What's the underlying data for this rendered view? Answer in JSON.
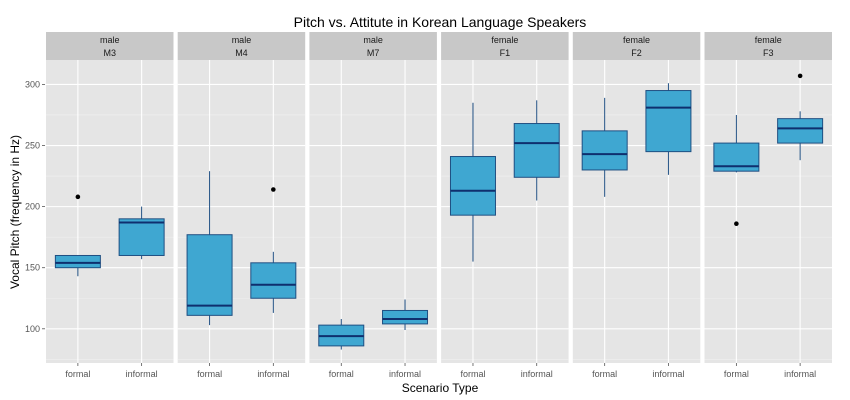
{
  "chart_data": {
    "type": "boxplot",
    "title": "Pitch vs. Attitute in Korean Language Speakers",
    "xlabel": "Scenario Type",
    "ylabel": "Vocal Pitch (frequency in Hz)",
    "ylim": [
      72,
      320
    ],
    "y_ticks": [
      100,
      150,
      200,
      250,
      300
    ],
    "categories": [
      "formal",
      "informal"
    ],
    "grid": true,
    "colors": {
      "panel_bg": "#e5e5e5",
      "strip_bg": "#c8c8c8",
      "grid": "#ffffff",
      "box_fill": "#3fa7d1",
      "box_stroke": "#1f4f82",
      "median": "#0f2f6e",
      "outlier": "#000000"
    },
    "facets": [
      {
        "gender": "male",
        "speaker": "M3",
        "boxes": [
          {
            "category": "formal",
            "min": 143,
            "q1": 150,
            "median": 154,
            "q3": 160,
            "max": 160,
            "outliers": [
              208
            ]
          },
          {
            "category": "informal",
            "min": 157,
            "q1": 160,
            "median": 187,
            "q3": 190,
            "max": 200,
            "outliers": []
          }
        ]
      },
      {
        "gender": "male",
        "speaker": "M4",
        "boxes": [
          {
            "category": "formal",
            "min": 103,
            "q1": 111,
            "median": 119,
            "q3": 177,
            "max": 229,
            "outliers": []
          },
          {
            "category": "informal",
            "min": 113,
            "q1": 125,
            "median": 136,
            "q3": 154,
            "max": 163,
            "outliers": [
              214
            ]
          }
        ]
      },
      {
        "gender": "male",
        "speaker": "M7",
        "boxes": [
          {
            "category": "formal",
            "min": 83,
            "q1": 86,
            "median": 94,
            "q3": 103,
            "max": 108,
            "outliers": []
          },
          {
            "category": "informal",
            "min": 99,
            "q1": 104,
            "median": 108,
            "q3": 115,
            "max": 124,
            "outliers": []
          }
        ]
      },
      {
        "gender": "female",
        "speaker": "F1",
        "boxes": [
          {
            "category": "formal",
            "min": 155,
            "q1": 193,
            "median": 213,
            "q3": 241,
            "max": 285,
            "outliers": []
          },
          {
            "category": "informal",
            "min": 205,
            "q1": 224,
            "median": 252,
            "q3": 268,
            "max": 287,
            "outliers": []
          }
        ]
      },
      {
        "gender": "female",
        "speaker": "F2",
        "boxes": [
          {
            "category": "formal",
            "min": 208,
            "q1": 230,
            "median": 243,
            "q3": 262,
            "max": 289,
            "outliers": []
          },
          {
            "category": "informal",
            "min": 226,
            "q1": 245,
            "median": 281,
            "q3": 295,
            "max": 301,
            "outliers": []
          }
        ]
      },
      {
        "gender": "female",
        "speaker": "F3",
        "boxes": [
          {
            "category": "formal",
            "min": 228,
            "q1": 229,
            "median": 233,
            "q3": 252,
            "max": 275,
            "outliers": [
              186
            ]
          },
          {
            "category": "informal",
            "min": 238,
            "q1": 252,
            "median": 264,
            "q3": 272,
            "max": 278,
            "outliers": [
              307
            ]
          }
        ]
      }
    ]
  }
}
